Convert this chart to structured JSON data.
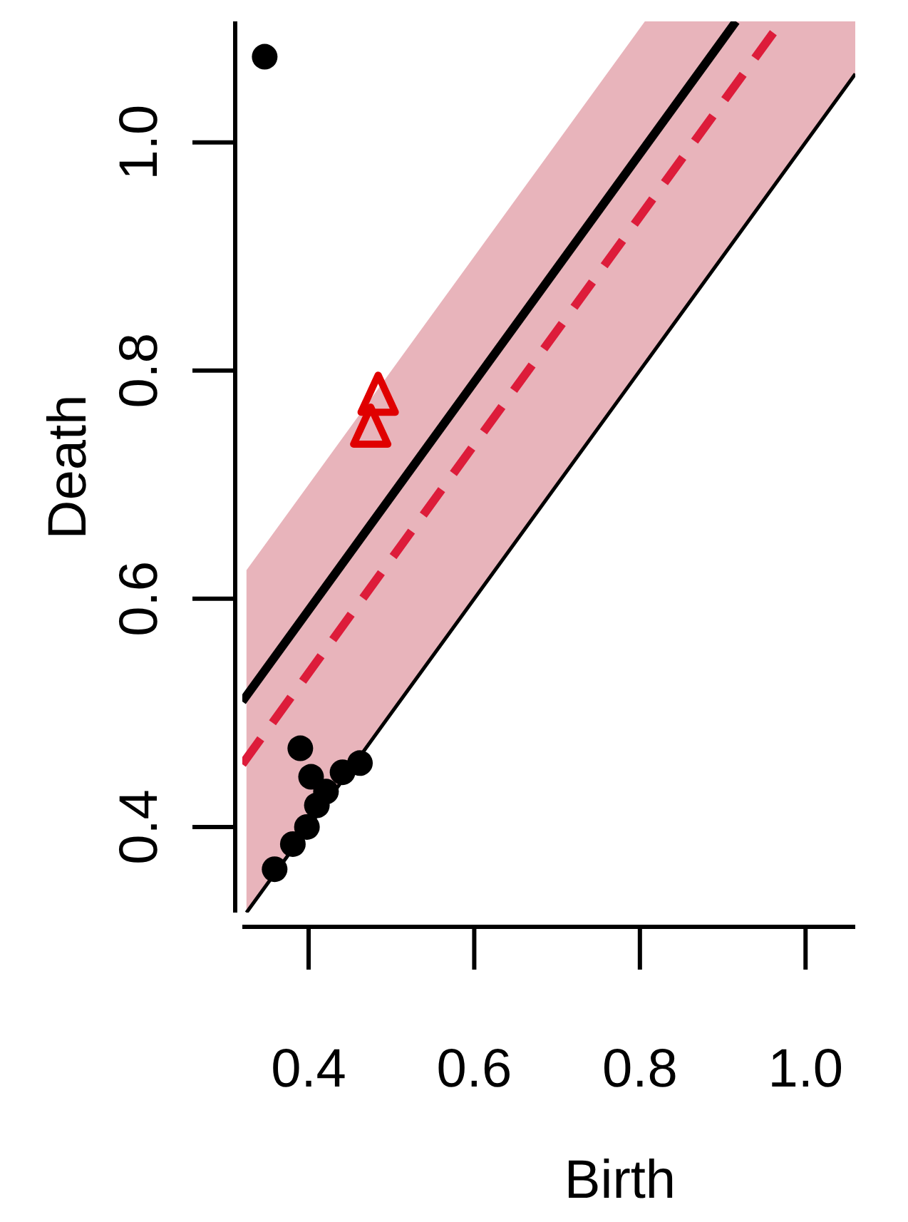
{
  "chart_data": {
    "type": "scatter",
    "xlabel": "Birth",
    "ylabel": "Death",
    "xlim": [
      0.32,
      1.06
    ],
    "ylim": [
      0.325,
      1.106
    ],
    "xticks": [
      {
        "value": 0.4,
        "label": "0.4"
      },
      {
        "value": 0.6,
        "label": "0.6"
      },
      {
        "value": 0.8,
        "label": "0.8"
      },
      {
        "value": 1.0,
        "label": "1.0"
      }
    ],
    "yticks": [
      {
        "value": 0.4,
        "label": "0.4"
      },
      {
        "value": 0.6,
        "label": "0.6"
      },
      {
        "value": 0.8,
        "label": "0.8"
      },
      {
        "value": 1.0,
        "label": "1.0"
      }
    ],
    "grid": false,
    "series": [
      {
        "type": "line",
        "color": "#000000",
        "x": [
          0.325,
          0.806,
          1.06
        ],
        "values": [
          0.325,
          0.806,
          1.06
        ],
        "lower": [
          0.325,
          0.806,
          1.06
        ],
        "upper": [
          0.625,
          1.106,
          1.106
        ],
        "line_style": "solid"
      },
      {
        "type": "line",
        "color": "#000000",
        "x": [
          0.32,
          0.916
        ],
        "values": [
          0.51,
          1.106
        ],
        "line_style": "solid"
      },
      {
        "type": "line",
        "color": "#dd1c3a",
        "x": [
          0.32,
          0.971
        ],
        "values": [
          0.455,
          1.106
        ],
        "line_style": "dashed"
      },
      {
        "color": "#000000",
        "marker": "circle",
        "x": [
          0.347,
          0.39,
          0.403,
          0.421,
          0.441,
          0.462,
          0.41,
          0.398,
          0.381,
          0.359
        ],
        "values": [
          1.075,
          0.469,
          0.444,
          0.431,
          0.448,
          0.456,
          0.419,
          0.4,
          0.385,
          0.363
        ]
      },
      {
        "type": "scatter",
        "color": "#e00000",
        "marker": "triangle",
        "x": [
          0.484,
          0.475
        ],
        "values": [
          0.776,
          0.748
        ]
      }
    ]
  }
}
